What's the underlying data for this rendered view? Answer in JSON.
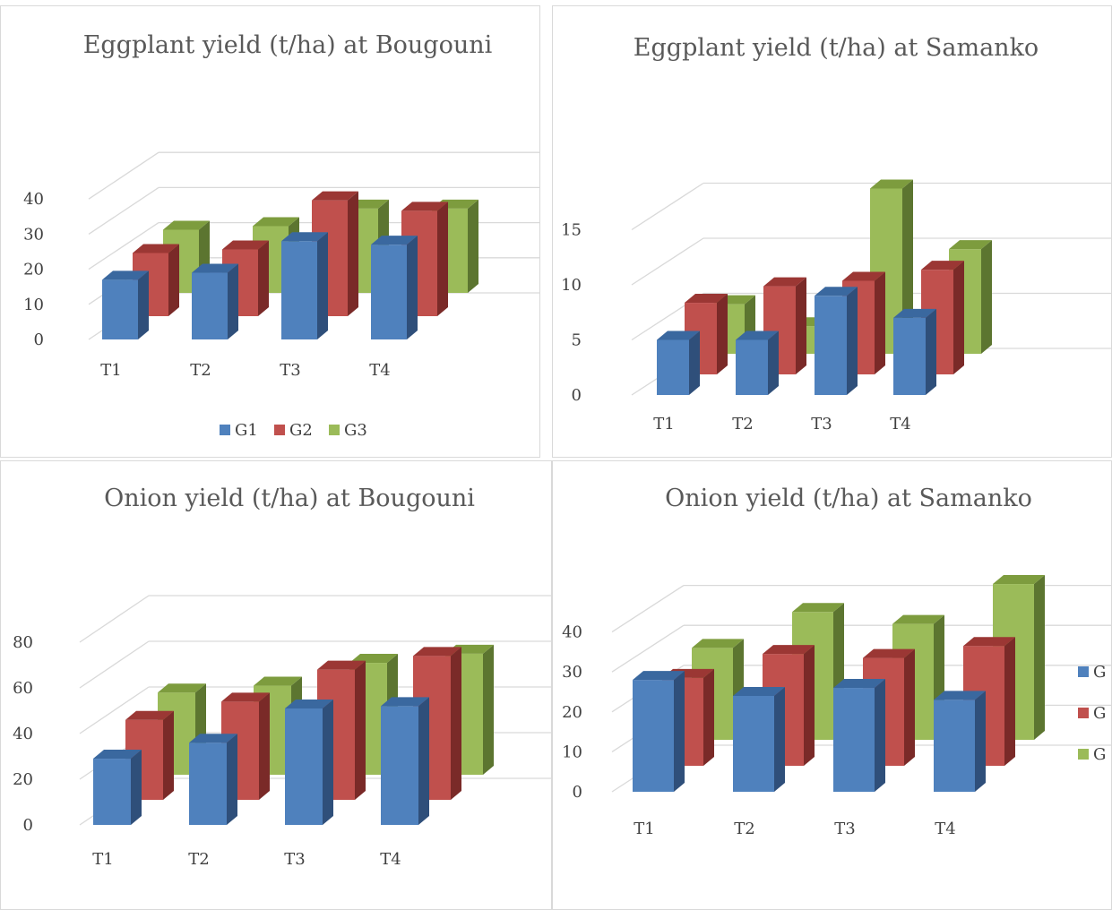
{
  "colors": {
    "G1": {
      "front": "#4f81bd",
      "side": "#2f4f7a",
      "top": "#3a689f"
    },
    "G2": {
      "front": "#c0504d",
      "side": "#7a2a28",
      "top": "#9b3734"
    },
    "G3": {
      "front": "#9bbb59",
      "side": "#5c7530",
      "top": "#7d9c3e"
    }
  },
  "chart_data": [
    {
      "type": "bar",
      "title": "Eggplant yield (t/ha) at Bougouni",
      "categories": [
        "T1",
        "T2",
        "T3",
        "T4"
      ],
      "yticks": [
        0,
        10,
        20,
        30,
        40
      ],
      "ylim": [
        0,
        50
      ],
      "legend": [
        "G1",
        "G2",
        "G3"
      ],
      "legend_position": "bottom",
      "series": [
        {
          "name": "G1",
          "values": [
            17,
            19,
            28,
            27
          ]
        },
        {
          "name": "G2",
          "values": [
            18,
            19,
            33,
            30
          ]
        },
        {
          "name": "G3",
          "values": [
            18,
            19,
            24,
            24
          ]
        }
      ]
    },
    {
      "type": "bar",
      "title": "Eggplant yield (t/ha) at Samanko",
      "categories": [
        "T1",
        "T2",
        "T3",
        "T4"
      ],
      "yticks": [
        0,
        5,
        10,
        15
      ],
      "ylim": [
        0,
        20
      ],
      "legend": [],
      "series": [
        {
          "name": "G1",
          "values": [
            5,
            5,
            9,
            7
          ]
        },
        {
          "name": "G2",
          "values": [
            6.5,
            8,
            8.5,
            9.5
          ]
        },
        {
          "name": "G3",
          "values": [
            4.5,
            2.5,
            15,
            9.5
          ]
        }
      ]
    },
    {
      "type": "bar",
      "title": "Onion yield (t/ha) at Bougouni",
      "categories": [
        "T1",
        "T2",
        "T3",
        "T4"
      ],
      "yticks": [
        0,
        20,
        40,
        60,
        80
      ],
      "ylim": [
        0,
        100
      ],
      "legend": [],
      "series": [
        {
          "name": "G1",
          "values": [
            29,
            36,
            51,
            52
          ]
        },
        {
          "name": "G2",
          "values": [
            35,
            43,
            57,
            63
          ]
        },
        {
          "name": "G3",
          "values": [
            36,
            39,
            49,
            53
          ]
        }
      ]
    },
    {
      "type": "bar",
      "title": "Onion yield (t/ha) at Samanko",
      "categories": [
        "T1",
        "T2",
        "T3",
        "T4"
      ],
      "yticks": [
        0,
        10,
        20,
        30,
        40
      ],
      "ylim": [
        0,
        50
      ],
      "legend": [
        "G",
        "G",
        "G"
      ],
      "legend_position": "right",
      "series": [
        {
          "name": "G1",
          "values": [
            28,
            24,
            26,
            23
          ]
        },
        {
          "name": "G2",
          "values": [
            22,
            28,
            27,
            30
          ]
        },
        {
          "name": "G3",
          "values": [
            23,
            32,
            29,
            39
          ]
        }
      ]
    }
  ]
}
